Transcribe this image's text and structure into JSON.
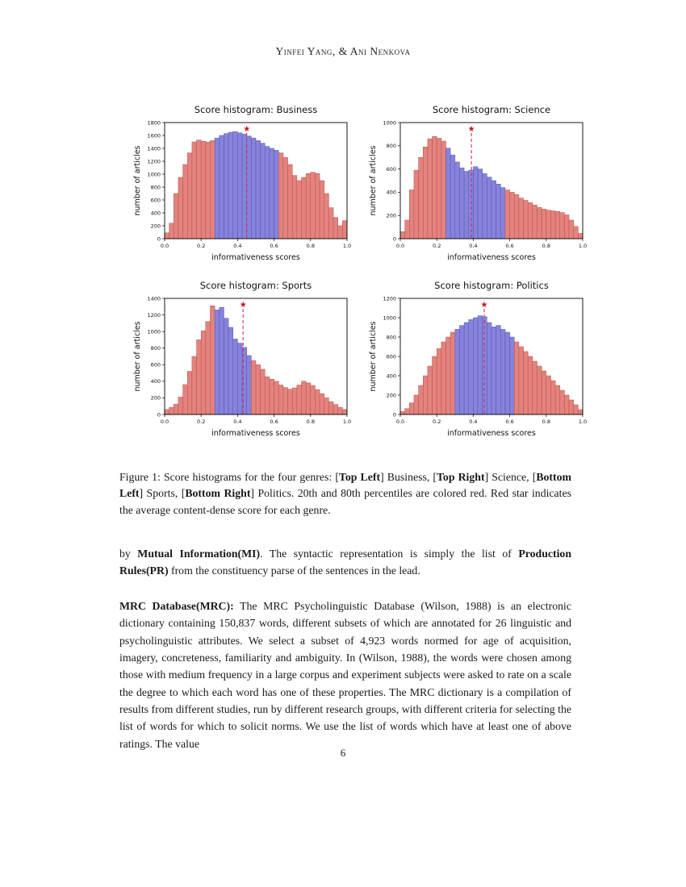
{
  "header": {
    "authors": "Yinfei Yang, & Ani Nenkova"
  },
  "colors": {
    "bar_red": "#e4837e",
    "bar_red_edge": "#b3524e",
    "bar_blue": "#8583da",
    "bar_blue_edge": "#5754b4",
    "mean_line": "#d42a5b",
    "star": "#cc1122",
    "axis": "#000000"
  },
  "chart_data": [
    {
      "type": "bar",
      "title": "Score histogram: Business",
      "xlabel": "informativeness scores",
      "ylabel": "number of articles",
      "xlim": [
        0,
        1
      ],
      "ylim": [
        0,
        1800
      ],
      "ytick_step": 200,
      "xticks": [
        0.0,
        0.2,
        0.4,
        0.6,
        0.8,
        1.0
      ],
      "bin_start": 0.0,
      "bin_width": 0.025,
      "values": [
        90,
        240,
        700,
        950,
        1150,
        1330,
        1500,
        1530,
        1510,
        1500,
        1520,
        1560,
        1600,
        1630,
        1650,
        1660,
        1640,
        1620,
        1590,
        1560,
        1520,
        1480,
        1430,
        1400,
        1370,
        1330,
        1260,
        1150,
        980,
        900,
        950,
        1010,
        1030,
        1010,
        900,
        700,
        480,
        330,
        200,
        280
      ],
      "blue_range": [
        0.275,
        0.625
      ],
      "mean_line_x": 0.45,
      "legend": "none",
      "grid": false
    },
    {
      "type": "bar",
      "title": "Score histogram: Science",
      "xlabel": "informativeness scores",
      "ylabel": "number of articles",
      "xlim": [
        0,
        1
      ],
      "ylim": [
        0,
        1000
      ],
      "ytick_step": 200,
      "xticks": [
        0.0,
        0.2,
        0.4,
        0.6,
        0.8,
        1.0
      ],
      "bin_start": 0.0,
      "bin_width": 0.025,
      "values": [
        60,
        160,
        420,
        590,
        700,
        790,
        860,
        880,
        865,
        840,
        780,
        720,
        660,
        610,
        580,
        590,
        620,
        600,
        560,
        530,
        500,
        470,
        440,
        420,
        400,
        380,
        350,
        330,
        310,
        290,
        270,
        255,
        245,
        240,
        235,
        225,
        205,
        160,
        105,
        45
      ],
      "blue_range": [
        0.25,
        0.575
      ],
      "mean_line_x": 0.39,
      "legend": "none",
      "grid": false
    },
    {
      "type": "bar",
      "title": "Score histogram: Sports",
      "xlabel": "informativeness scores",
      "ylabel": "number of articles",
      "xlim": [
        0,
        1
      ],
      "ylim": [
        0,
        1400
      ],
      "ytick_step": 200,
      "xticks": [
        0.0,
        0.2,
        0.4,
        0.6,
        0.8,
        1.0
      ],
      "bin_start": 0.0,
      "bin_width": 0.025,
      "values": [
        60,
        85,
        125,
        210,
        360,
        520,
        700,
        900,
        1010,
        1120,
        1310,
        1260,
        1290,
        1160,
        1050,
        910,
        860,
        810,
        710,
        650,
        600,
        545,
        455,
        425,
        400,
        355,
        325,
        305,
        320,
        355,
        400,
        380,
        350,
        300,
        250,
        200,
        155,
        120,
        85,
        60
      ],
      "blue_range": [
        0.275,
        0.475
      ],
      "mean_line_x": 0.43,
      "legend": "none",
      "grid": false
    },
    {
      "type": "bar",
      "title": "Score histogram: Politics",
      "xlabel": "informativeness scores",
      "ylabel": "number of articles",
      "xlim": [
        0,
        1
      ],
      "ylim": [
        0,
        1200
      ],
      "ytick_step": 200,
      "xticks": [
        0.0,
        0.2,
        0.4,
        0.6,
        0.8,
        1.0
      ],
      "bin_start": 0.0,
      "bin_width": 0.025,
      "values": [
        30,
        60,
        120,
        200,
        300,
        400,
        500,
        600,
        680,
        750,
        800,
        850,
        880,
        920,
        950,
        980,
        1000,
        1020,
        1010,
        950,
        905,
        920,
        880,
        850,
        800,
        750,
        700,
        650,
        600,
        550,
        500,
        450,
        400,
        350,
        300,
        250,
        200,
        150,
        100,
        50
      ],
      "blue_range": [
        0.3,
        0.625
      ],
      "mean_line_x": 0.46,
      "legend": "none",
      "grid": false
    }
  ],
  "figure": {
    "caption_segments": [
      {
        "text": "Figure 1: Score histograms for the four genres: [",
        "bold": false
      },
      {
        "text": "Top Left",
        "bold": true
      },
      {
        "text": "] Business, [",
        "bold": false
      },
      {
        "text": "Top Right",
        "bold": true
      },
      {
        "text": "] Science, [",
        "bold": false
      },
      {
        "text": "Bottom Left",
        "bold": true
      },
      {
        "text": "] Sports, [",
        "bold": false
      },
      {
        "text": "Bottom Right",
        "bold": true
      },
      {
        "text": "] Politics. 20th and 80th percentiles are colored red. Red star indicates the average content-dense score for each genre.",
        "bold": false
      }
    ]
  },
  "paragraphs": [
    {
      "segments": [
        {
          "text": "by ",
          "bold": false
        },
        {
          "text": "Mutual Information(MI)",
          "bold": true
        },
        {
          "text": ". The syntactic representation is simply the list of ",
          "bold": false
        },
        {
          "text": "Production Rules(PR)",
          "bold": true
        },
        {
          "text": " from the constituency parse of the sentences in the lead.",
          "bold": false
        }
      ]
    },
    {
      "segments": [
        {
          "text": "MRC Database(MRC):",
          "bold": true
        },
        {
          "text": " The MRC Psycholinguistic Database (Wilson, 1988) is an electronic dictionary containing 150,837 words, different subsets of which are annotated for 26 linguistic and psycholinguistic attributes. We select a subset of 4,923 words normed for age of acquisition, imagery, concreteness, familiarity and ambiguity. In (Wilson, 1988), the words were chosen among those with medium frequency in a large corpus and experiment subjects were asked to rate on a scale the degree to which each word has one of these properties. The MRC dictionary is a compilation of results from different studies, run by different research groups, with different criteria for selecting the list of words for which to solicit norms. We use the list of words which have at least one of above ratings. The value",
          "bold": false
        }
      ]
    }
  ],
  "footer": {
    "page_number": "6"
  }
}
